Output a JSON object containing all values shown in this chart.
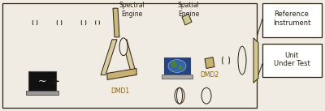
{
  "bg_color": "#f0ece4",
  "line_color": "#2a2010",
  "text_color": "#2a2010",
  "dmd_color": "#8B6000",
  "lens_color": "#555040",
  "labels": {
    "spectral_engine": "Spectral\nEngine",
    "spatial_engine": "Spatial\nEngine",
    "dmd1": "DMD1",
    "dmd2": "DMD2",
    "reference": "Reference\nInstrument",
    "unit_under_test": "Unit\nUnder Test"
  },
  "fig_width": 4.0,
  "fig_height": 1.37,
  "dpi": 100
}
